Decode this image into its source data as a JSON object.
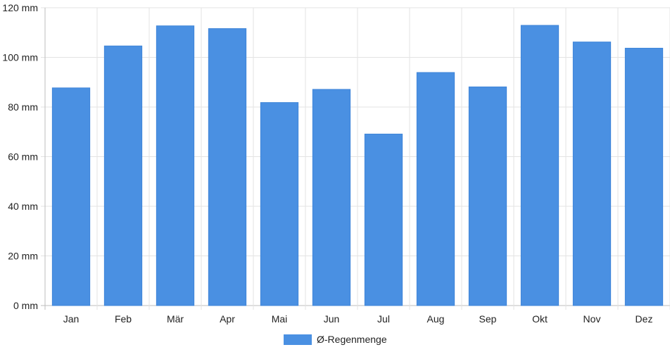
{
  "chart_data": {
    "type": "bar",
    "categories": [
      "Jan",
      "Feb",
      "Mär",
      "Apr",
      "Mai",
      "Jun",
      "Jul",
      "Aug",
      "Sep",
      "Okt",
      "Nov",
      "Dez"
    ],
    "series": [
      {
        "name": "Ø-Regenmenge",
        "values": [
          87.7,
          104.6,
          112.7,
          111.6,
          81.8,
          87.1,
          69.1,
          93.9,
          88.1,
          112.9,
          106.2,
          103.7
        ],
        "color": "#4a90e2"
      }
    ],
    "y_ticks": [
      {
        "value": 0,
        "label": "0 mm"
      },
      {
        "value": 20,
        "label": "20 mm"
      },
      {
        "value": 40,
        "label": "40 mm"
      },
      {
        "value": 60,
        "label": "60 mm"
      },
      {
        "value": 80,
        "label": "80 mm"
      },
      {
        "value": 100,
        "label": "100 mm"
      },
      {
        "value": 120,
        "label": "120 mm"
      }
    ],
    "ylim": [
      0,
      120
    ],
    "grid": true,
    "legend_position": "bottom-center"
  }
}
